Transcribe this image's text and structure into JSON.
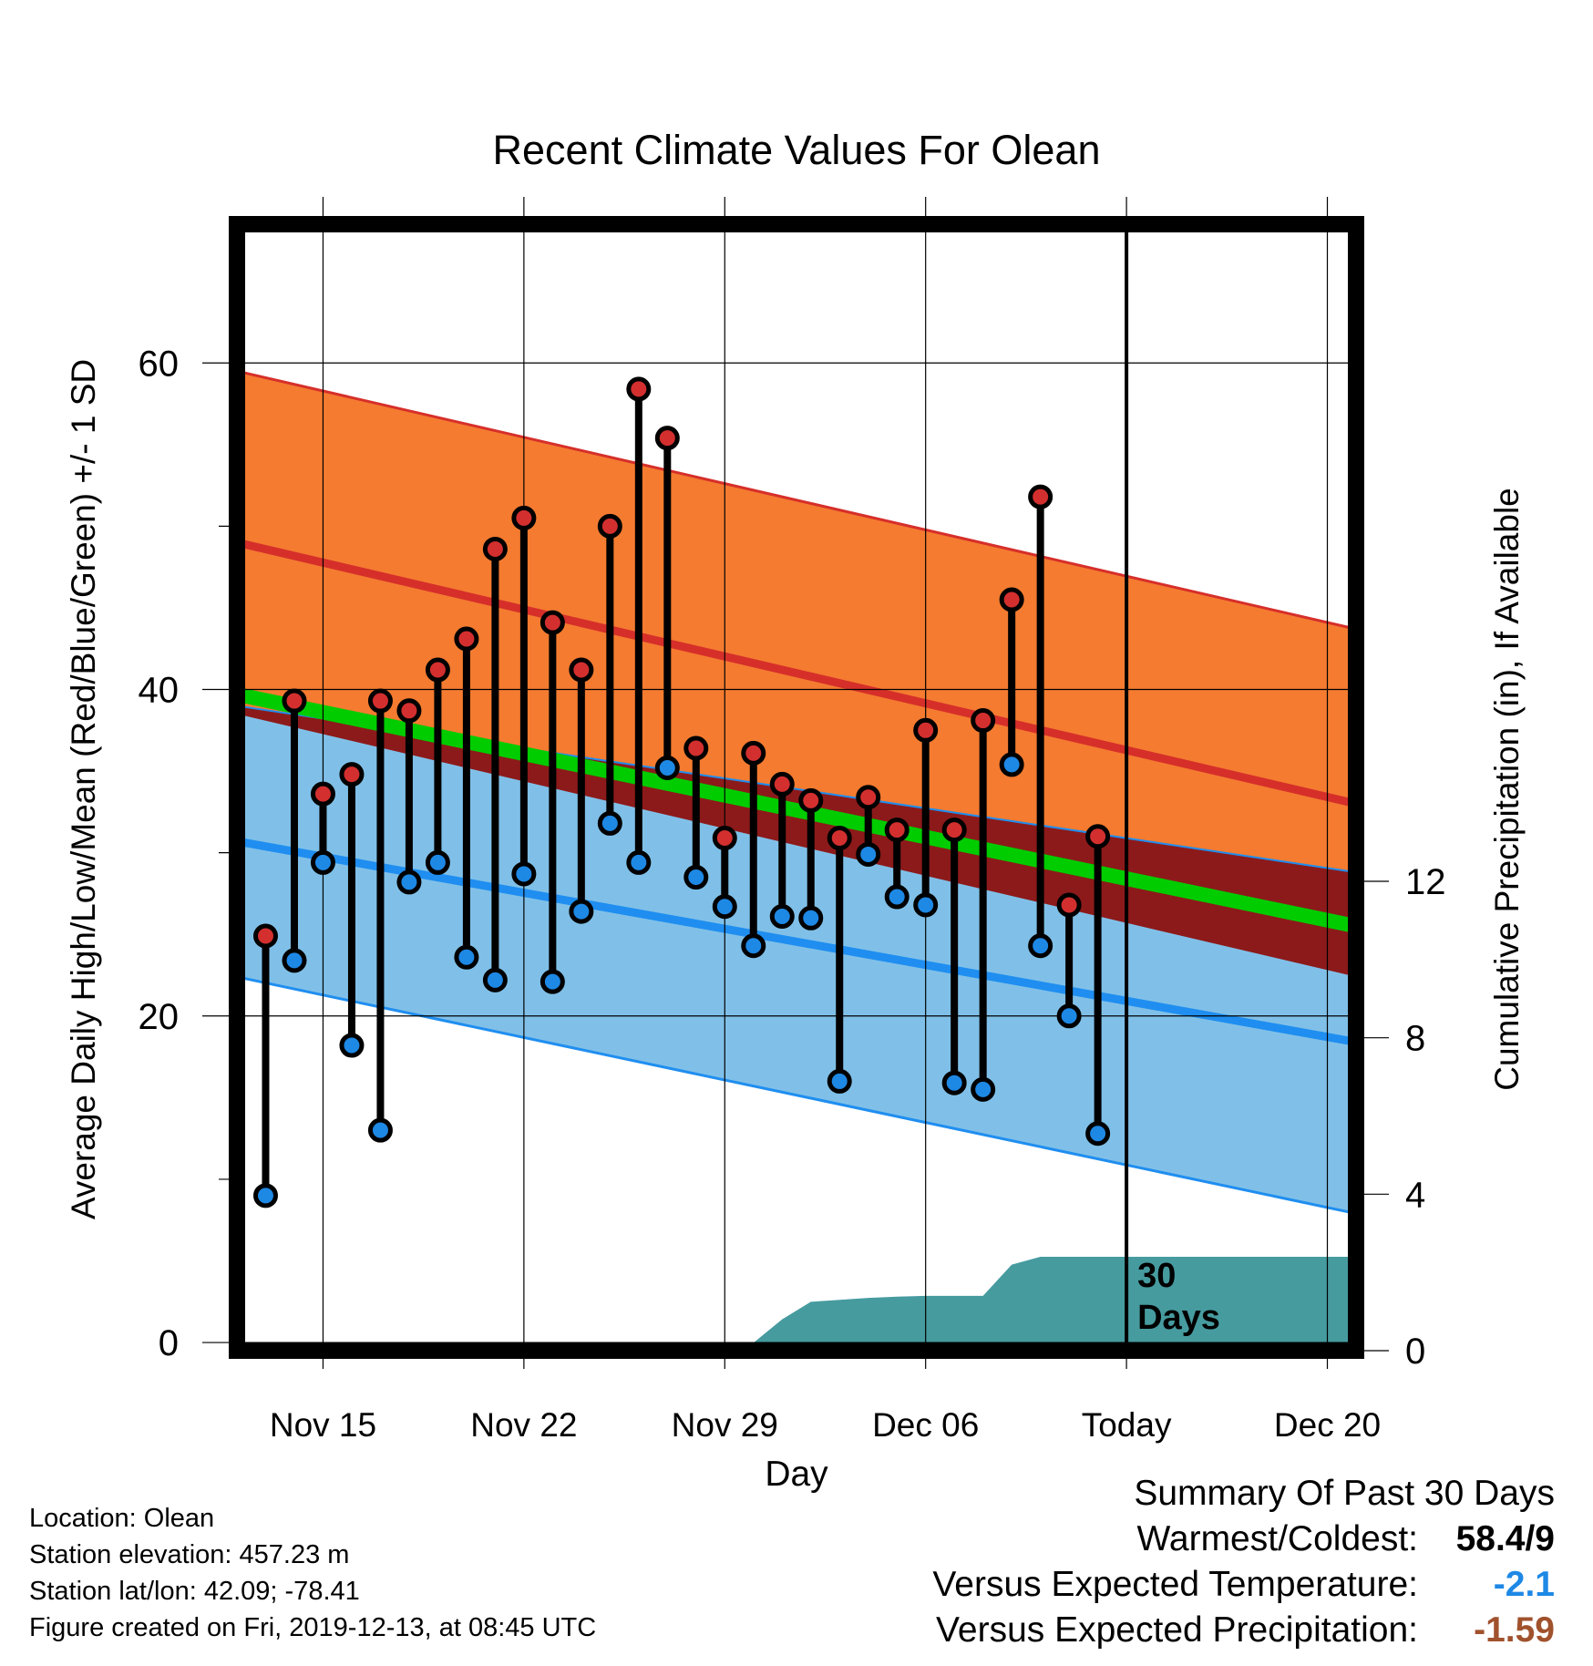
{
  "chart_data": {
    "type": "line",
    "title": "Recent Climate Values For Olean",
    "xlabel": "Day",
    "ylabel_left": "Average Daily High/Low/Mean (Red/Blue/Green) +/- 1 SD",
    "ylabel_right": "Cumulative Precipitation (in), If Available",
    "x_tick_labels": [
      "Nov 15",
      "Nov 22",
      "Nov 29",
      "Dec 06",
      "Today",
      "Dec 20"
    ],
    "x_tick_days": [
      15,
      22,
      29,
      36,
      43,
      50
    ],
    "x_range_days": [
      12,
      51
    ],
    "y_left_ticks": [
      0,
      20,
      40,
      60
    ],
    "y_left_range": [
      -0.5,
      68.5
    ],
    "y_right_ticks": [
      0,
      4,
      8,
      12
    ],
    "y_right_range": [
      0,
      28.8
    ],
    "today_day": 43,
    "today_annotation": [
      "30",
      "Days"
    ],
    "grid": true,
    "normals": {
      "day": [
        12,
        51
      ],
      "high_mean": [
        49,
        33
      ],
      "high_plus_sd": [
        59.5,
        43.7
      ],
      "high_minus_sd": [
        38.5,
        22.4
      ],
      "low_mean": [
        30.7,
        18.4
      ],
      "low_plus_sd": [
        39,
        28.8
      ],
      "low_minus_sd": [
        22.4,
        7.9
      ],
      "avg_mean": [
        39.7,
        25.5
      ]
    },
    "observed": {
      "day": [
        13,
        14,
        15,
        16,
        17,
        18,
        19,
        20,
        21,
        22,
        23,
        24,
        25,
        26,
        27,
        28,
        29,
        30,
        31,
        32,
        33,
        34,
        35,
        36,
        37,
        38,
        39,
        40,
        41,
        42
      ],
      "high": [
        24.9,
        39.3,
        33.6,
        34.8,
        39.3,
        38.7,
        41.2,
        43.1,
        48.6,
        50.5,
        44.1,
        41.2,
        50.0,
        58.4,
        55.4,
        36.4,
        30.9,
        36.1,
        34.2,
        33.2,
        30.9,
        33.4,
        31.4,
        37.5,
        31.4,
        38.1,
        45.5,
        51.8,
        26.8,
        31.0
      ],
      "low": [
        9.0,
        23.4,
        29.4,
        18.2,
        13.0,
        28.2,
        29.4,
        23.6,
        22.2,
        28.7,
        22.1,
        26.4,
        31.8,
        29.4,
        35.2,
        28.5,
        26.7,
        24.3,
        26.1,
        26.0,
        16.0,
        29.9,
        27.3,
        26.8,
        15.9,
        15.5,
        35.4,
        24.3,
        20.0,
        12.8
      ]
    },
    "precip_cumulative": {
      "day": [
        12,
        25,
        26,
        27,
        28,
        29,
        30,
        31,
        32,
        33,
        34,
        35,
        36,
        37,
        38,
        39,
        40,
        41,
        42,
        51
      ],
      "value": [
        0,
        0,
        0,
        0,
        0.1,
        0.15,
        0.2,
        0.8,
        1.25,
        1.3,
        1.35,
        1.38,
        1.4,
        1.4,
        1.4,
        2.2,
        2.4,
        2.4,
        2.4,
        2.4
      ]
    },
    "colors": {
      "high_band": "#f47b30",
      "high_line": "#d62f2a",
      "low_band": "#80c0e8",
      "low_line": "#1f8ef0",
      "avg_line": "#00cc00",
      "overlap_band": "#8c1a1a",
      "precip": "#469b9f",
      "high_marker": "#d32f2f",
      "low_marker": "#1e88e5"
    }
  },
  "info": {
    "location": "Location: Olean",
    "elevation": "Station elevation: 457.23 m",
    "latlon": "Station lat/lon: 42.09; -78.41",
    "created": "Figure created on Fri, 2019-12-13, at 08:45 UTC"
  },
  "summary": {
    "heading": "Summary Of Past 30 Days",
    "warm_cold_label": "Warmest/Coldest:",
    "warm_cold_value": "58.4/9",
    "temp_label": "Versus Expected Temperature:",
    "temp_value": "-2.1",
    "temp_color": "#1e88e5",
    "precip_label": "Versus Expected Precipitation:",
    "precip_value": "-1.59",
    "precip_color": "#a0522d"
  }
}
